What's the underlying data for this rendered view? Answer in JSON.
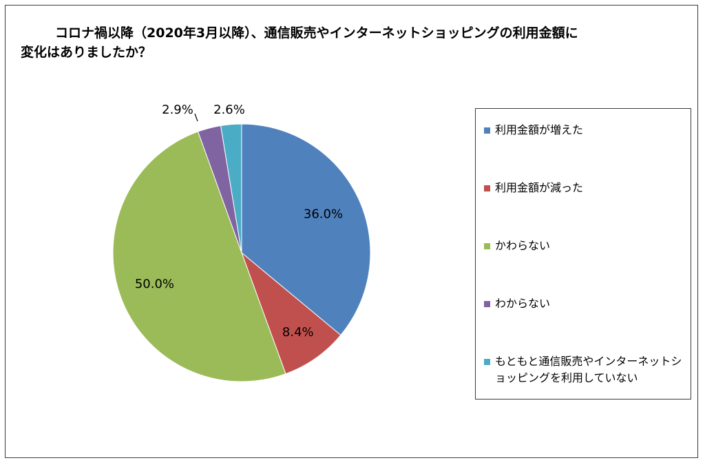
{
  "title": "コロナ禍以降（2020年3月以降）、通信販売やインターネットショッピングの利用金額に変化はありましたか？",
  "chart_data": {
    "type": "pie",
    "categories": [
      "利用金額が増えた",
      "利用金額が減った",
      "かわらない",
      "わからない",
      "もともと通信販売やインターネットショッピングを利用していない"
    ],
    "values": [
      36.0,
      8.4,
      50.0,
      2.9,
      2.6
    ],
    "value_labels": [
      "36.0%",
      "8.4%",
      "50.0%",
      "2.9%",
      "2.6%"
    ],
    "colors": [
      "#4f81bd",
      "#c0504d",
      "#9bbb59",
      "#8064a2",
      "#4bacc6"
    ],
    "legend_position": "right",
    "start": "top",
    "direction": "clockwise"
  }
}
